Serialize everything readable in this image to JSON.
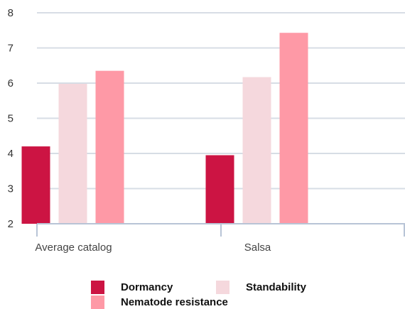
{
  "chart_data": {
    "type": "bar",
    "categories": [
      "Average catalog",
      "Salsa"
    ],
    "series": [
      {
        "name": "Dormancy",
        "values": [
          4.2,
          3.95
        ],
        "color": "#cc1443"
      },
      {
        "name": "Standability",
        "values": [
          5.98,
          6.17
        ],
        "color": "#f5d8dd"
      },
      {
        "name": "Nematode resistance",
        "values": [
          6.35,
          7.43
        ],
        "color": "#fe99a6"
      }
    ],
    "ylim": [
      2,
      8
    ],
    "yticks": [
      "2",
      "3",
      "4",
      "5",
      "6",
      "7",
      "8"
    ],
    "title": "",
    "xlabel": "",
    "ylabel": "",
    "grid": true,
    "legend_position": "bottom"
  }
}
